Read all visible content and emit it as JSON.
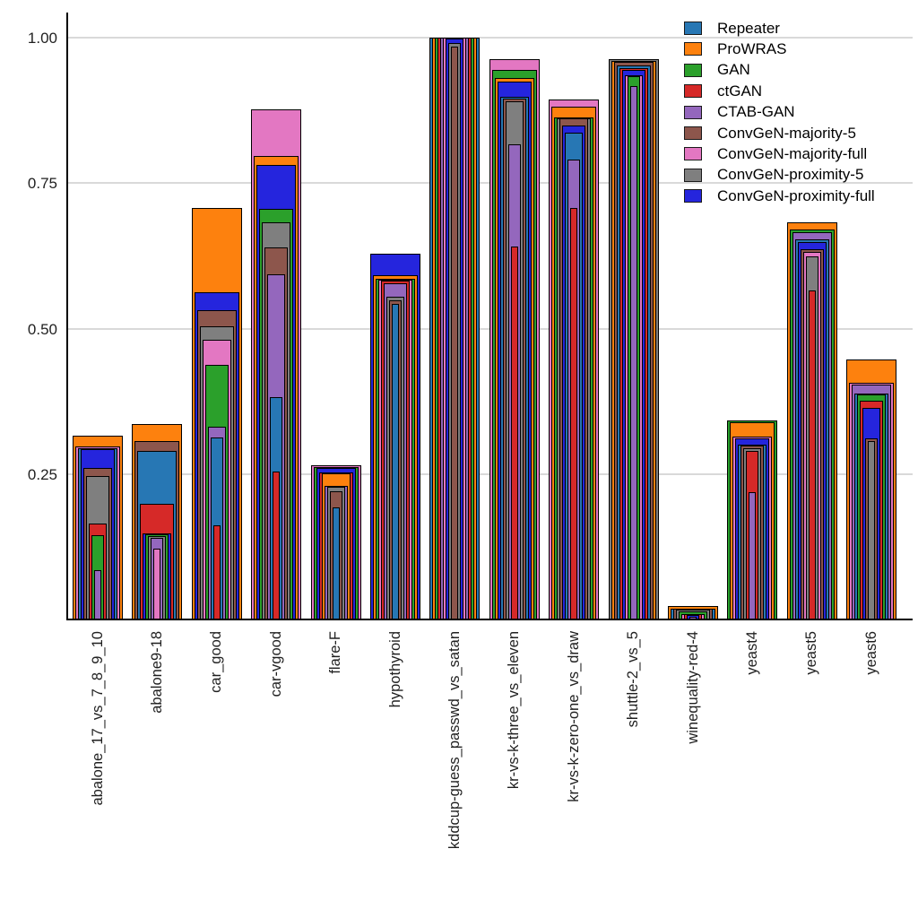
{
  "chart_data": {
    "type": "bar",
    "variant": "overlapping_nested_bars",
    "title": "",
    "xlabel": "",
    "ylabel": "",
    "grid": true,
    "legend_position": "top-right",
    "ylim": [
      0,
      1.05
    ],
    "ytick_labels": [
      "0.25",
      "0.50",
      "0.75",
      "1.00"
    ],
    "ytick_values": [
      0.25,
      0.5,
      0.75,
      1.0
    ],
    "categories": [
      "abalone_17_vs_7_8_9_10",
      "abalone9-18",
      "car_good",
      "car-vgood",
      "flare-F",
      "hypothyroid",
      "kddcup-guess_passwd_vs_satan",
      "kr-vs-k-three_vs_eleven",
      "kr-vs-k-zero-one_vs_draw",
      "shuttle-2_vs_5",
      "winequality-red-4",
      "yeast4",
      "yeast5",
      "yeast6"
    ],
    "series": [
      {
        "name": "Repeater",
        "color": "#2777b4",
        "values": [
          0.295,
          0.29,
          0.313,
          0.382,
          0.192,
          0.543,
          1.0,
          0.899,
          0.837,
          0.952,
          0.019,
          0.301,
          0.654,
          0.388
        ]
      },
      {
        "name": "ProWRAS",
        "color": "#fd810e",
        "values": [
          0.316,
          0.336,
          0.708,
          0.796,
          0.251,
          0.592,
          1.0,
          0.93,
          0.881,
          0.96,
          0.023,
          0.339,
          0.683,
          0.447
        ]
      },
      {
        "name": "GAN",
        "color": "#2ba02b",
        "values": [
          0.145,
          0.146,
          0.438,
          0.706,
          0.262,
          0.586,
          1.0,
          0.944,
          0.863,
          0.934,
          0.014,
          0.342,
          0.67,
          0.386
        ]
      },
      {
        "name": "ctGAN",
        "color": "#d62928",
        "values": [
          0.165,
          0.198,
          0.162,
          0.255,
          0.253,
          0.582,
          1.0,
          0.641,
          0.708,
          0.947,
          0.009,
          0.289,
          0.566,
          0.376
        ]
      },
      {
        "name": "CTAB-GAN",
        "color": "#9467bd",
        "values": [
          0.084,
          0.14,
          0.332,
          0.593,
          0.23,
          0.578,
          1.0,
          0.817,
          0.79,
          0.917,
          0.005,
          0.219,
          0.666,
          0.403
        ]
      },
      {
        "name": "ConvGeN-majority-5",
        "color": "#8d564c",
        "values": [
          0.261,
          0.307,
          0.531,
          0.64,
          0.221,
          0.549,
          0.985,
          0.895,
          0.861,
          0.958,
          0.018,
          0.299,
          0.637,
          0.312
        ]
      },
      {
        "name": "ConvGeN-majority-full",
        "color": "#e377c2",
        "values": [
          0.298,
          0.122,
          0.48,
          0.876,
          0.265,
          0.584,
          1.0,
          0.963,
          0.894,
          0.936,
          0.01,
          0.315,
          0.632,
          0.407
        ]
      },
      {
        "name": "ConvGeN-proximity-5",
        "color": "#7f7f7f",
        "values": [
          0.247,
          0.143,
          0.504,
          0.683,
          0.228,
          0.554,
          0.99,
          0.891,
          0.862,
          0.963,
          0.017,
          0.294,
          0.624,
          0.307
        ]
      },
      {
        "name": "ConvGeN-proximity-full",
        "color": "#2525dd",
        "values": [
          0.292,
          0.148,
          0.562,
          0.781,
          0.26,
          0.628,
          0.998,
          0.924,
          0.849,
          0.944,
          0.008,
          0.311,
          0.648,
          0.364
        ]
      }
    ]
  }
}
